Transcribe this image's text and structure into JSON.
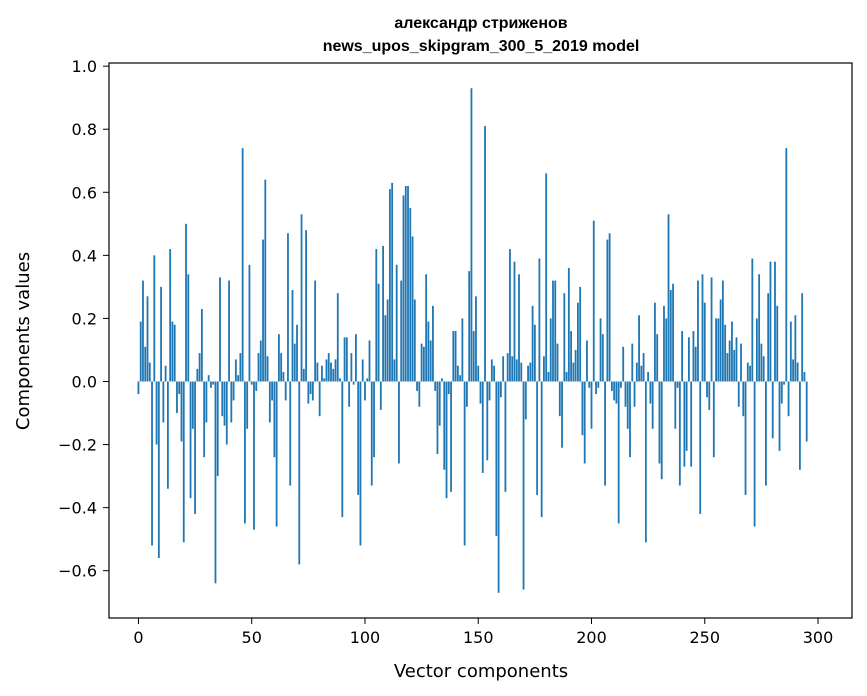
{
  "chart_data": {
    "type": "bar",
    "title_lines": [
      "александр стриженов",
      "news_upos_skipgram_300_5_2019 model"
    ],
    "xlabel": "Vector components",
    "ylabel": "Components values",
    "xlim": [
      -13,
      315
    ],
    "ylim": [
      -0.75,
      1.01
    ],
    "x_ticks": [
      0,
      50,
      100,
      150,
      200,
      250,
      300
    ],
    "x_tick_labels": [
      "0",
      "50",
      "100",
      "150",
      "200",
      "250",
      "300"
    ],
    "y_ticks": [
      -0.6,
      -0.4,
      -0.2,
      0.0,
      0.2,
      0.4,
      0.6,
      0.8,
      1.0
    ],
    "y_tick_labels": [
      "−0.6",
      "−0.4",
      "−0.2",
      "0.0",
      "0.2",
      "0.4",
      "0.6",
      "0.8",
      "1.0"
    ],
    "bar_color": "#1f77b4",
    "grid": false,
    "x": "0..299 (component index)",
    "values": [
      -0.04,
      0.19,
      0.32,
      0.11,
      0.27,
      0.06,
      -0.52,
      0.4,
      -0.2,
      -0.56,
      0.3,
      -0.13,
      0.05,
      -0.34,
      0.42,
      0.19,
      0.18,
      -0.1,
      -0.04,
      -0.19,
      -0.51,
      0.5,
      0.34,
      -0.37,
      -0.15,
      -0.42,
      0.04,
      0.09,
      0.23,
      -0.24,
      -0.13,
      0.02,
      -0.02,
      -0.01,
      -0.64,
      -0.3,
      0.33,
      -0.11,
      -0.14,
      -0.2,
      0.32,
      -0.13,
      -0.06,
      0.07,
      0.02,
      0.09,
      0.74,
      -0.45,
      -0.15,
      0.37,
      -0.01,
      -0.47,
      -0.03,
      0.09,
      0.13,
      0.45,
      0.64,
      0.08,
      -0.13,
      -0.06,
      -0.24,
      -0.46,
      0.15,
      0.09,
      0.03,
      -0.06,
      0.47,
      -0.33,
      0.29,
      0.12,
      0.18,
      -0.58,
      0.53,
      0.04,
      0.48,
      -0.07,
      -0.04,
      -0.06,
      0.32,
      0.06,
      -0.11,
      0.05,
      0.01,
      0.07,
      0.09,
      0.06,
      0.04,
      0.07,
      0.28,
      0.01,
      -0.43,
      0.14,
      0.14,
      -0.08,
      0.09,
      -0.01,
      0.15,
      -0.36,
      -0.52,
      0.07,
      -0.06,
      0.01,
      0.13,
      -0.33,
      -0.24,
      0.42,
      0.31,
      -0.09,
      0.43,
      0.21,
      0.26,
      0.61,
      0.63,
      0.07,
      0.37,
      -0.26,
      0.32,
      0.59,
      0.62,
      0.62,
      0.55,
      0.46,
      0.26,
      -0.03,
      -0.08,
      0.12,
      0.11,
      0.34,
      0.19,
      0.13,
      0.24,
      -0.03,
      -0.23,
      -0.14,
      0.01,
      -0.28,
      -0.37,
      -0.04,
      -0.35,
      0.16,
      0.16,
      0.05,
      0.02,
      0.2,
      -0.52,
      -0.08,
      0.35,
      0.93,
      0.16,
      0.27,
      0.05,
      -0.07,
      -0.29,
      0.81,
      -0.25,
      -0.06,
      0.07,
      0.05,
      -0.49,
      -0.67,
      -0.05,
      0.08,
      -0.35,
      0.09,
      0.42,
      0.08,
      0.38,
      0.07,
      0.34,
      0.06,
      -0.66,
      -0.12,
      0.05,
      0.06,
      0.24,
      0.18,
      -0.36,
      0.39,
      -0.43,
      0.08,
      0.66,
      0.03,
      0.2,
      0.32,
      0.32,
      0.12,
      -0.11,
      -0.21,
      0.28,
      0.03,
      0.36,
      0.16,
      0.06,
      0.1,
      0.25,
      0.3,
      -0.17,
      -0.26,
      0.13,
      -0.02,
      -0.15,
      0.51,
      -0.04,
      -0.02,
      0.2,
      0.15,
      -0.33,
      0.45,
      0.47,
      -0.03,
      -0.06,
      -0.07,
      -0.45,
      -0.02,
      0.11,
      -0.08,
      -0.15,
      -0.24,
      0.12,
      -0.08,
      0.06,
      0.21,
      0.05,
      0.09,
      -0.51,
      0.03,
      -0.07,
      -0.15,
      0.25,
      0.15,
      -0.26,
      -0.31,
      0.24,
      0.2,
      0.53,
      0.29,
      0.31,
      -0.15,
      -0.02,
      -0.33,
      0.16,
      -0.27,
      -0.22,
      0.14,
      -0.27,
      0.16,
      0.11,
      0.32,
      -0.42,
      0.34,
      0.25,
      -0.05,
      -0.09,
      0.33,
      -0.24,
      0.2,
      0.2,
      0.26,
      0.32,
      0.18,
      0.09,
      0.13,
      0.19,
      0.1,
      0.14,
      -0.08,
      0.12,
      -0.11,
      -0.36,
      0.06,
      0.05,
      0.39,
      -0.46,
      0.2,
      0.34,
      0.12,
      0.08,
      -0.33,
      0.28,
      0.38,
      -0.18,
      0.38,
      0.24,
      -0.22,
      -0.07,
      -0.01,
      0.74,
      -0.11,
      0.19,
      0.07,
      0.21,
      0.06,
      -0.28,
      0.28,
      0.03,
      -0.19
    ]
  }
}
